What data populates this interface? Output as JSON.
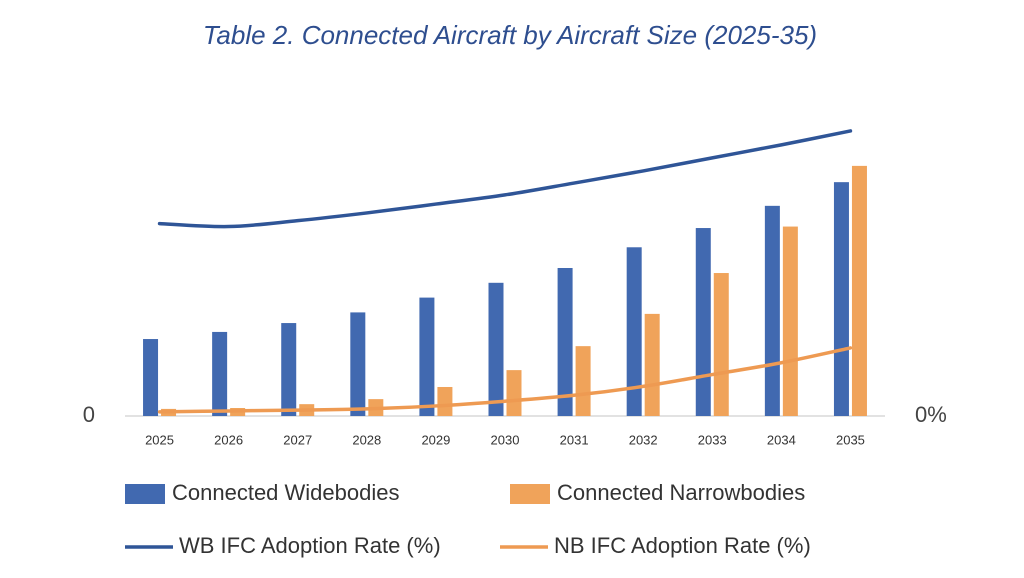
{
  "chart_data": {
    "type": "bar",
    "title": "Table 2. Connected Aircraft by Aircraft Size (2025-35)",
    "categories": [
      "2025",
      "2026",
      "2027",
      "2028",
      "2029",
      "2030",
      "2031",
      "2032",
      "2033",
      "2034",
      "2035"
    ],
    "series": [
      {
        "name": "Connected Widebodies",
        "type": "bar",
        "color": "#4169b0",
        "values": [
          26,
          28.4,
          31.4,
          35,
          40,
          45,
          50,
          57,
          63.5,
          71,
          79
        ]
      },
      {
        "name": "Connected Narrowbodies",
        "type": "bar",
        "color": "#f0a35a",
        "values": [
          2.4,
          2.7,
          4,
          5.7,
          9.8,
          15.5,
          23.6,
          34.5,
          48.3,
          64,
          84.5
        ]
      },
      {
        "name": "WB IFC Adoption Rate (%)",
        "type": "line",
        "axis": "y2",
        "color": "#2f5597",
        "values": [
          65,
          64,
          66,
          68.6,
          71.6,
          74.7,
          78.7,
          82.8,
          87.2,
          91.6,
          96.3
        ]
      },
      {
        "name": "NB IFC Adoption Rate (%)",
        "type": "line",
        "axis": "y2",
        "color": "#ee9a52",
        "values": [
          1.4,
          1.7,
          2,
          2.4,
          3.4,
          5,
          7,
          10,
          14,
          18,
          23
        ]
      }
    ],
    "ylim": [
      0,
      100
    ],
    "yticks": [
      0
    ],
    "y2lim": [
      0,
      100
    ],
    "y2ticks": [
      {
        "value": 0,
        "label": "0%"
      }
    ],
    "grid": false
  }
}
